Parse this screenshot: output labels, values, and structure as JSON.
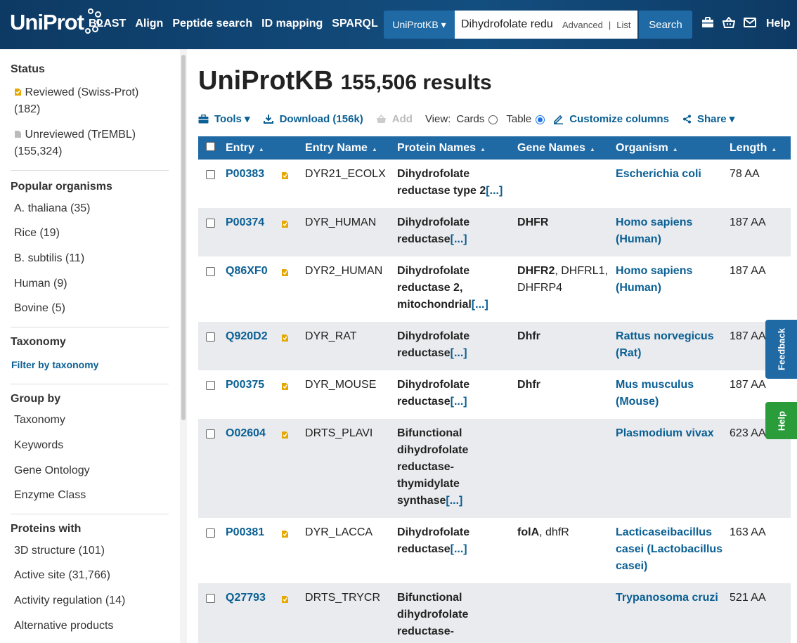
{
  "header": {
    "logo": "UniProt",
    "nav": [
      "BLAST",
      "Align",
      "Peptide search",
      "ID mapping",
      "SPARQL"
    ],
    "db_select": "UniProtKB ▾",
    "query": "Dihydrofolate redu",
    "advanced": "Advanced",
    "separator": "|",
    "list": "List",
    "search": "Search",
    "icons": [
      "tools-icon",
      "basket-icon",
      "mail-icon"
    ],
    "help": "Help"
  },
  "sidebar": {
    "status": {
      "title": "Status",
      "items": [
        {
          "label": "Reviewed (Swiss-Prot)",
          "count": "(182)",
          "icon": "reviewed-icon"
        },
        {
          "label": "Unreviewed (TrEMBL)",
          "count": "(155,324)",
          "icon": "unreviewed-icon"
        }
      ]
    },
    "popular": {
      "title": "Popular organisms",
      "items": [
        "A. thaliana (35)",
        "Rice (19)",
        "B. subtilis (11)",
        "Human (9)",
        "Bovine (5)"
      ]
    },
    "taxonomy": {
      "title": "Taxonomy",
      "link": "Filter by taxonomy"
    },
    "groupby": {
      "title": "Group by",
      "items": [
        "Taxonomy",
        "Keywords",
        "Gene Ontology",
        "Enzyme Class"
      ]
    },
    "proteins_with": {
      "title": "Proteins with",
      "items": [
        "3D structure (101)",
        "Active site (31,766)",
        "Activity regulation (14)",
        "Alternative products"
      ]
    }
  },
  "main": {
    "title": "UniProtKB",
    "results": "155,506 results",
    "toolbar": {
      "tools": "Tools ▾",
      "download": "Download (156k)",
      "add": "Add",
      "view": "View:",
      "cards": "Cards",
      "table": "Table",
      "view_selected": "table",
      "customize": "Customize columns",
      "share": "Share ▾"
    },
    "columns": [
      "Entry",
      "Entry Name",
      "Protein Names",
      "Gene Names",
      "Organism",
      "Length"
    ],
    "more_marker": "[...]",
    "rows": [
      {
        "entry": "P00383",
        "name": "DYR21_ECOLX",
        "protein": "Dihydrofolate reductase type 2",
        "genes": [],
        "organism": "Escherichia coli",
        "length": "78 AA"
      },
      {
        "entry": "P00374",
        "name": "DYR_HUMAN",
        "protein": "Dihydrofolate reductase",
        "genes": [
          {
            "t": "DHFR",
            "b": true
          }
        ],
        "organism": "Homo sapiens (Human)",
        "length": "187 AA"
      },
      {
        "entry": "Q86XF0",
        "name": "DYR2_HUMAN",
        "protein": "Dihydrofolate reductase 2, mitochondrial",
        "genes": [
          {
            "t": "DHFR2",
            "b": true
          },
          {
            "t": "DHFRL1",
            "b": false
          },
          {
            "t": "DHFRP4",
            "b": false
          }
        ],
        "organism": "Homo sapiens (Human)",
        "length": "187 AA"
      },
      {
        "entry": "Q920D2",
        "name": "DYR_RAT",
        "protein": "Dihydrofolate reductase",
        "genes": [
          {
            "t": "Dhfr",
            "b": true
          }
        ],
        "organism": "Rattus norvegicus (Rat)",
        "length": "187 AA"
      },
      {
        "entry": "P00375",
        "name": "DYR_MOUSE",
        "protein": "Dihydrofolate reductase",
        "genes": [
          {
            "t": "Dhfr",
            "b": true
          }
        ],
        "organism": "Mus musculus (Mouse)",
        "length": "187 AA"
      },
      {
        "entry": "O02604",
        "name": "DRTS_PLAVI",
        "protein": "Bifunctional dihydrofolate reductase-thymidylate synthase",
        "genes": [],
        "organism": "Plasmodium vivax",
        "length": "623 AA"
      },
      {
        "entry": "P00381",
        "name": "DYR_LACCA",
        "protein": "Dihydrofolate reductase",
        "genes": [
          {
            "t": "folA",
            "b": true
          },
          {
            "t": "dhfR",
            "b": false
          }
        ],
        "organism": "Lacticaseibacillus casei (Lactobacillus casei)",
        "length": "163 AA"
      },
      {
        "entry": "Q27793",
        "name": "DRTS_TRYCR",
        "protein": "Bifunctional dihydrofolate reductase-",
        "genes": [],
        "organism": "Trypanosoma cruzi",
        "length": "521 AA"
      }
    ]
  },
  "side_tabs": {
    "feedback": "Feedback",
    "help": "Help"
  }
}
